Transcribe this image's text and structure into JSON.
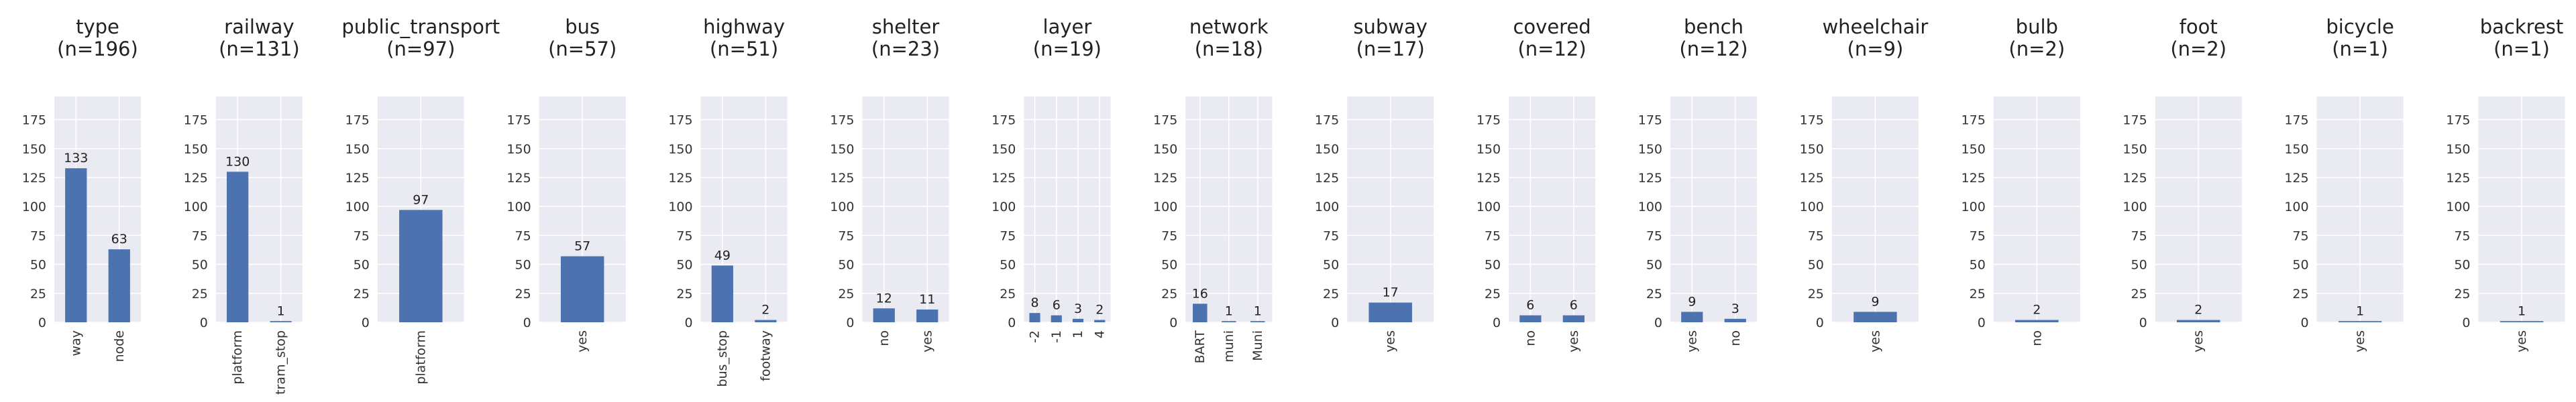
{
  "chart_data": [
    {
      "type": "bar",
      "title": "type",
      "subtitle": "(n=196)",
      "categories": [
        "way",
        "node"
      ],
      "values": [
        133,
        63
      ],
      "ylim": [
        0,
        195
      ],
      "yticks": [
        0,
        25,
        50,
        75,
        100,
        125,
        150,
        175
      ],
      "grid": true,
      "bar_color": "#4c72b0"
    },
    {
      "type": "bar",
      "title": "railway",
      "subtitle": "(n=131)",
      "categories": [
        "platform",
        "tram_stop"
      ],
      "values": [
        130,
        1
      ],
      "ylim": [
        0,
        195
      ],
      "yticks": [
        0,
        25,
        50,
        75,
        100,
        125,
        150,
        175
      ],
      "grid": true,
      "bar_color": "#4c72b0"
    },
    {
      "type": "bar",
      "title": "public_transport",
      "subtitle": "(n=97)",
      "categories": [
        "platform"
      ],
      "values": [
        97
      ],
      "ylim": [
        0,
        195
      ],
      "yticks": [
        0,
        25,
        50,
        75,
        100,
        125,
        150,
        175
      ],
      "grid": true,
      "bar_color": "#4c72b0"
    },
    {
      "type": "bar",
      "title": "bus",
      "subtitle": "(n=57)",
      "categories": [
        "yes"
      ],
      "values": [
        57
      ],
      "ylim": [
        0,
        195
      ],
      "yticks": [
        0,
        25,
        50,
        75,
        100,
        125,
        150,
        175
      ],
      "grid": true,
      "bar_color": "#4c72b0"
    },
    {
      "type": "bar",
      "title": "highway",
      "subtitle": "(n=51)",
      "categories": [
        "bus_stop",
        "footway"
      ],
      "values": [
        49,
        2
      ],
      "ylim": [
        0,
        195
      ],
      "yticks": [
        0,
        25,
        50,
        75,
        100,
        125,
        150,
        175
      ],
      "grid": true,
      "bar_color": "#4c72b0"
    },
    {
      "type": "bar",
      "title": "shelter",
      "subtitle": "(n=23)",
      "categories": [
        "no",
        "yes"
      ],
      "values": [
        12,
        11
      ],
      "ylim": [
        0,
        195
      ],
      "yticks": [
        0,
        25,
        50,
        75,
        100,
        125,
        150,
        175
      ],
      "grid": true,
      "bar_color": "#4c72b0"
    },
    {
      "type": "bar",
      "title": "layer",
      "subtitle": "(n=19)",
      "categories": [
        "-2",
        "-1",
        "1",
        "4"
      ],
      "values": [
        8,
        6,
        3,
        2
      ],
      "ylim": [
        0,
        195
      ],
      "yticks": [
        0,
        25,
        50,
        75,
        100,
        125,
        150,
        175
      ],
      "grid": true,
      "bar_color": "#4c72b0"
    },
    {
      "type": "bar",
      "title": "network",
      "subtitle": "(n=18)",
      "categories": [
        "BART",
        "muni",
        "Muni"
      ],
      "values": [
        16,
        1,
        1
      ],
      "ylim": [
        0,
        195
      ],
      "yticks": [
        0,
        25,
        50,
        75,
        100,
        125,
        150,
        175
      ],
      "grid": true,
      "bar_color": "#4c72b0"
    },
    {
      "type": "bar",
      "title": "subway",
      "subtitle": "(n=17)",
      "categories": [
        "yes"
      ],
      "values": [
        17
      ],
      "ylim": [
        0,
        195
      ],
      "yticks": [
        0,
        25,
        50,
        75,
        100,
        125,
        150,
        175
      ],
      "grid": true,
      "bar_color": "#4c72b0"
    },
    {
      "type": "bar",
      "title": "covered",
      "subtitle": "(n=12)",
      "categories": [
        "no",
        "yes"
      ],
      "values": [
        6,
        6
      ],
      "ylim": [
        0,
        195
      ],
      "yticks": [
        0,
        25,
        50,
        75,
        100,
        125,
        150,
        175
      ],
      "grid": true,
      "bar_color": "#4c72b0"
    },
    {
      "type": "bar",
      "title": "bench",
      "subtitle": "(n=12)",
      "categories": [
        "yes",
        "no"
      ],
      "values": [
        9,
        3
      ],
      "ylim": [
        0,
        195
      ],
      "yticks": [
        0,
        25,
        50,
        75,
        100,
        125,
        150,
        175
      ],
      "grid": true,
      "bar_color": "#4c72b0"
    },
    {
      "type": "bar",
      "title": "wheelchair",
      "subtitle": "(n=9)",
      "categories": [
        "yes"
      ],
      "values": [
        9
      ],
      "ylim": [
        0,
        195
      ],
      "yticks": [
        0,
        25,
        50,
        75,
        100,
        125,
        150,
        175
      ],
      "grid": true,
      "bar_color": "#4c72b0"
    },
    {
      "type": "bar",
      "title": "bulb",
      "subtitle": "(n=2)",
      "categories": [
        "no"
      ],
      "values": [
        2
      ],
      "ylim": [
        0,
        195
      ],
      "yticks": [
        0,
        25,
        50,
        75,
        100,
        125,
        150,
        175
      ],
      "grid": true,
      "bar_color": "#4c72b0"
    },
    {
      "type": "bar",
      "title": "foot",
      "subtitle": "(n=2)",
      "categories": [
        "yes"
      ],
      "values": [
        2
      ],
      "ylim": [
        0,
        195
      ],
      "yticks": [
        0,
        25,
        50,
        75,
        100,
        125,
        150,
        175
      ],
      "grid": true,
      "bar_color": "#4c72b0"
    },
    {
      "type": "bar",
      "title": "bicycle",
      "subtitle": "(n=1)",
      "categories": [
        "yes"
      ],
      "values": [
        1
      ],
      "ylim": [
        0,
        195
      ],
      "yticks": [
        0,
        25,
        50,
        75,
        100,
        125,
        150,
        175
      ],
      "grid": true,
      "bar_color": "#4c72b0"
    },
    {
      "type": "bar",
      "title": "backrest",
      "subtitle": "(n=1)",
      "categories": [
        "yes"
      ],
      "values": [
        1
      ],
      "ylim": [
        0,
        195
      ],
      "yticks": [
        0,
        25,
        50,
        75,
        100,
        125,
        150,
        175
      ],
      "grid": true,
      "bar_color": "#4c72b0"
    }
  ]
}
